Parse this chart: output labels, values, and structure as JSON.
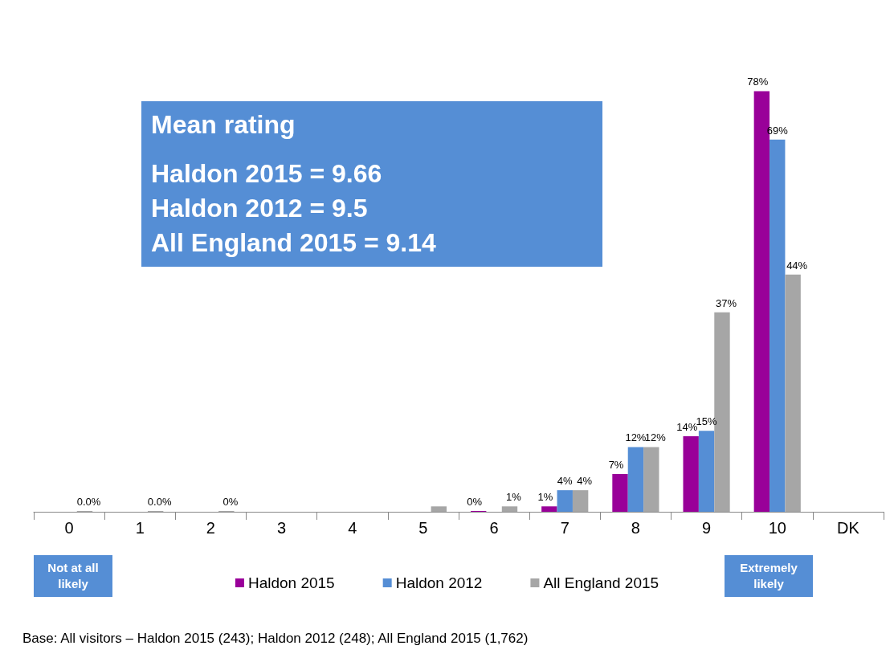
{
  "chart_data": {
    "type": "bar",
    "categories": [
      "0",
      "1",
      "2",
      "3",
      "4",
      "5",
      "6",
      "7",
      "8",
      "9",
      "10",
      "DK"
    ],
    "series": [
      {
        "name": "Haldon 2015",
        "color": "#990099",
        "values": [
          null,
          null,
          null,
          null,
          null,
          null,
          0,
          1,
          7,
          14,
          78,
          null
        ],
        "value_labels": [
          null,
          null,
          null,
          null,
          null,
          null,
          "0%",
          "1%",
          "7%",
          "14%",
          "78%",
          null
        ]
      },
      {
        "name": "Haldon 2012",
        "color": "#558ed5",
        "values": [
          null,
          null,
          null,
          null,
          null,
          null,
          null,
          4,
          12,
          15,
          69,
          null
        ],
        "value_labels": [
          null,
          null,
          null,
          null,
          null,
          null,
          null,
          "4%",
          "12%",
          "15%",
          "69%",
          null
        ]
      },
      {
        "name": "All England 2015",
        "color": "#a6a6a6",
        "values": [
          0,
          0,
          0,
          null,
          null,
          1,
          1,
          4,
          12,
          37,
          44,
          null
        ],
        "value_labels": [
          "0.0%",
          "0.0%",
          "0%",
          null,
          null,
          null,
          "1%",
          "4%",
          "12%",
          "37%",
          "44%",
          null
        ]
      }
    ],
    "legend": "bottom",
    "annotations": [
      "Mean rating",
      "Haldon 2015 = 9.66",
      "Haldon 2012 = 9.5",
      "All England 2015 = 9.14",
      "Not at all likely",
      "Extremely likely",
      "Base: All visitors – Haldon 2015 (243); Haldon 2012 (248); All England 2015 (1,762)"
    ]
  }
}
